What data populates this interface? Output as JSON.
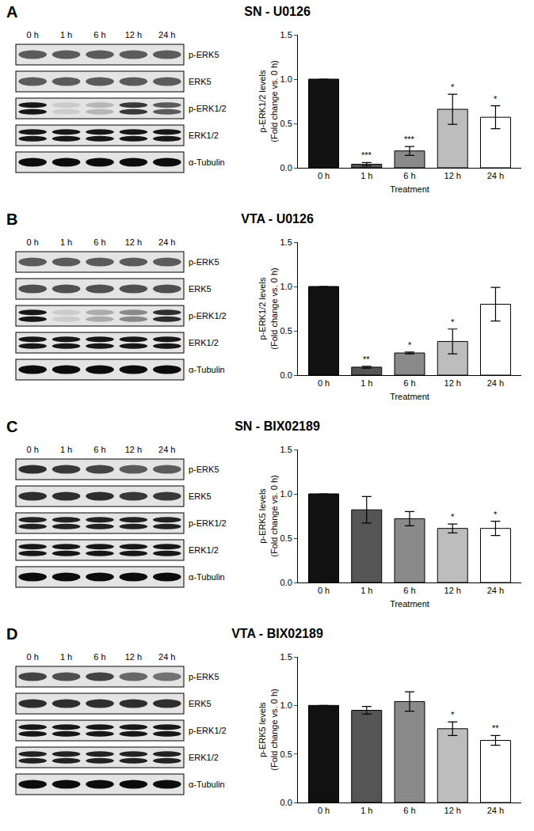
{
  "chart_data": [
    {
      "panel": "A",
      "type": "bar",
      "title": "SN - U0126",
      "categories": [
        "0 h",
        "1 h",
        "6 h",
        "12 h",
        "24 h"
      ],
      "values": [
        1.0,
        0.04,
        0.19,
        0.66,
        0.57
      ],
      "errors": [
        0,
        0.02,
        0.05,
        0.17,
        0.13
      ],
      "significance": [
        null,
        "***",
        "***",
        "*",
        "*"
      ],
      "colors": [
        "#111111",
        "#555555",
        "#8a8a8a",
        "#bdbdbd",
        "#ffffff"
      ],
      "y_label": [
        "p-ERK1/2 levels",
        "(Fold change vs. 0 h)"
      ],
      "x_label": "Treatment",
      "ylim": [
        0,
        1.5
      ],
      "yticks": [
        {
          "value": 0,
          "label": "0.0"
        },
        {
          "value": 0.5,
          "label": "0.5"
        },
        {
          "value": 1,
          "label": "1.0"
        },
        {
          "value": 1.5,
          "label": "1.5"
        }
      ],
      "blot": {
        "lanes": [
          "0 h",
          "1 h",
          "6 h",
          "12 h",
          "24 h"
        ],
        "rows": [
          {
            "label": "p-ERK5",
            "bands": 1,
            "intensity": [
              0.6,
              0.6,
              0.6,
              0.6,
              0.6
            ]
          },
          {
            "label": "ERK5",
            "bands": 1,
            "intensity": [
              0.6,
              0.6,
              0.6,
              0.6,
              0.6
            ]
          },
          {
            "label": "p-ERK1/2",
            "bands": 2,
            "intensity": [
              0.9,
              0.1,
              0.2,
              0.75,
              0.6
            ]
          },
          {
            "label": "ERK1/2",
            "bands": 2,
            "intensity": [
              0.9,
              0.9,
              0.9,
              0.9,
              0.9
            ]
          },
          {
            "label": "α-Tubulin",
            "bands": 1,
            "intensity": [
              0.95,
              0.95,
              0.95,
              0.95,
              0.95
            ]
          }
        ]
      }
    },
    {
      "panel": "B",
      "type": "bar",
      "title": "VTA - U0126",
      "categories": [
        "0 h",
        "1 h",
        "6 h",
        "12 h",
        "24 h"
      ],
      "values": [
        1.0,
        0.09,
        0.25,
        0.38,
        0.8
      ],
      "errors": [
        0,
        0.01,
        0.01,
        0.14,
        0.19
      ],
      "significance": [
        null,
        "**",
        "*",
        "*",
        null
      ],
      "colors": [
        "#111111",
        "#555555",
        "#8a8a8a",
        "#bdbdbd",
        "#ffffff"
      ],
      "y_label": [
        "p-ERK1/2 levels",
        "(Fold change vs. 0 h)"
      ],
      "x_label": "Treatment",
      "ylim": [
        0,
        1.5
      ],
      "yticks": [
        {
          "value": 0,
          "label": "0.0"
        },
        {
          "value": 0.5,
          "label": "0.5"
        },
        {
          "value": 1,
          "label": "1.0"
        },
        {
          "value": 1.5,
          "label": "1.5"
        }
      ],
      "blot": {
        "lanes": [
          "0 h",
          "1 h",
          "6 h",
          "12 h",
          "24 h"
        ],
        "rows": [
          {
            "label": "p-ERK5",
            "bands": 1,
            "intensity": [
              0.6,
              0.6,
              0.6,
              0.6,
              0.6
            ]
          },
          {
            "label": "ERK5",
            "bands": 1,
            "intensity": [
              0.65,
              0.65,
              0.65,
              0.65,
              0.65
            ]
          },
          {
            "label": "p-ERK1/2",
            "bands": 2,
            "intensity": [
              0.9,
              0.1,
              0.25,
              0.4,
              0.8
            ]
          },
          {
            "label": "ERK1/2",
            "bands": 2,
            "intensity": [
              0.9,
              0.9,
              0.9,
              0.9,
              0.9
            ]
          },
          {
            "label": "α-Tubulin",
            "bands": 1,
            "intensity": [
              0.95,
              0.95,
              0.95,
              0.95,
              0.95
            ]
          }
        ]
      }
    },
    {
      "panel": "C",
      "type": "bar",
      "title": "SN - BIX02189",
      "categories": [
        "0 h",
        "1 h",
        "6 h",
        "12 h",
        "24 h"
      ],
      "values": [
        1.0,
        0.82,
        0.72,
        0.61,
        0.61
      ],
      "errors": [
        0,
        0.15,
        0.08,
        0.05,
        0.08
      ],
      "significance": [
        null,
        null,
        null,
        "*",
        "*"
      ],
      "colors": [
        "#111111",
        "#555555",
        "#8a8a8a",
        "#bdbdbd",
        "#ffffff"
      ],
      "y_label": [
        "p-ERK5 levels",
        "(Fold change vs. 0 h)"
      ],
      "x_label": "Treatment",
      "ylim": [
        0,
        1.5
      ],
      "yticks": [
        {
          "value": 0,
          "label": "0.0"
        },
        {
          "value": 0.5,
          "label": "0.5"
        },
        {
          "value": 1,
          "label": "1.0"
        },
        {
          "value": 1.5,
          "label": "1.5"
        }
      ],
      "blot": {
        "lanes": [
          "0 h",
          "1 h",
          "6 h",
          "12 h",
          "24 h"
        ],
        "rows": [
          {
            "label": "p-ERK5",
            "bands": 1,
            "intensity": [
              0.8,
              0.75,
              0.7,
              0.6,
              0.6
            ]
          },
          {
            "label": "ERK5",
            "bands": 1,
            "intensity": [
              0.8,
              0.8,
              0.8,
              0.75,
              0.75
            ]
          },
          {
            "label": "p-ERK1/2",
            "bands": 2,
            "intensity": [
              0.85,
              0.85,
              0.85,
              0.85,
              0.85
            ]
          },
          {
            "label": "ERK1/2",
            "bands": 2,
            "intensity": [
              0.9,
              0.9,
              0.9,
              0.9,
              0.9
            ]
          },
          {
            "label": "α-Tubulin",
            "bands": 1,
            "intensity": [
              0.95,
              0.95,
              0.95,
              0.95,
              0.95
            ]
          }
        ]
      }
    },
    {
      "panel": "D",
      "type": "bar",
      "title": "VTA - BIX02189",
      "categories": [
        "0 h",
        "1 h",
        "6 h",
        "12 h",
        "24 h"
      ],
      "values": [
        1.0,
        0.95,
        1.04,
        0.76,
        0.64
      ],
      "errors": [
        0,
        0.04,
        0.1,
        0.07,
        0.05
      ],
      "significance": [
        null,
        null,
        null,
        "*",
        "**"
      ],
      "colors": [
        "#111111",
        "#555555",
        "#8a8a8a",
        "#bdbdbd",
        "#ffffff"
      ],
      "y_label": [
        "p-ERK5 levels",
        "(Fold change vs. 0 h)"
      ],
      "ylim": [
        0,
        1.5
      ],
      "yticks": [
        {
          "value": 0,
          "label": "0.0"
        },
        {
          "value": 0.5,
          "label": "0.5"
        },
        {
          "value": 1,
          "label": "1.0"
        },
        {
          "value": 1.5,
          "label": "1.5"
        }
      ],
      "blot": {
        "lanes": [
          "0 h",
          "1 h",
          "6 h",
          "12 h",
          "24 h"
        ],
        "rows": [
          {
            "label": "p-ERK5",
            "bands": 1,
            "intensity": [
              0.7,
              0.65,
              0.7,
              0.55,
              0.5
            ]
          },
          {
            "label": "ERK5",
            "bands": 1,
            "intensity": [
              0.8,
              0.8,
              0.8,
              0.8,
              0.8
            ]
          },
          {
            "label": "p-ERK1/2",
            "bands": 2,
            "intensity": [
              0.9,
              0.9,
              0.9,
              0.9,
              0.9
            ]
          },
          {
            "label": "ERK1/2",
            "bands": 2,
            "intensity": [
              0.85,
              0.85,
              0.85,
              0.85,
              0.85
            ]
          },
          {
            "label": "α-Tubulin",
            "bands": 1,
            "intensity": [
              0.95,
              0.95,
              0.95,
              0.95,
              0.95
            ]
          }
        ]
      }
    }
  ]
}
